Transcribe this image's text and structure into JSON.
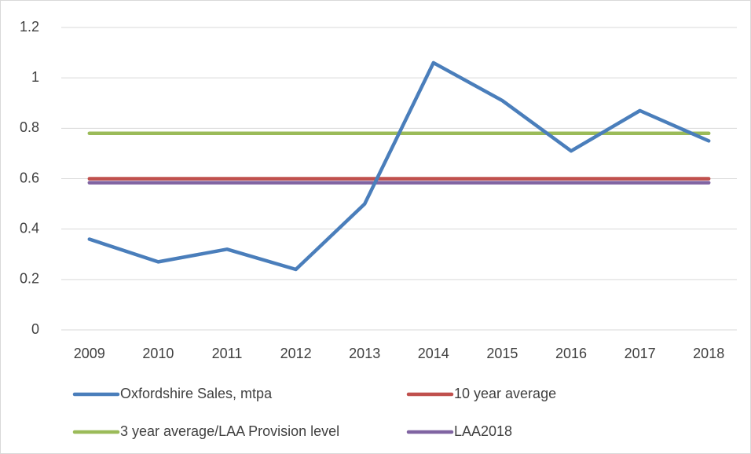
{
  "chart_data": {
    "type": "line",
    "categories": [
      "2009",
      "2010",
      "2011",
      "2012",
      "2013",
      "2014",
      "2015",
      "2016",
      "2017",
      "2018"
    ],
    "series": [
      {
        "name": "Oxfordshire Sales, mtpa",
        "color": "#4a7ebb",
        "values": [
          0.36,
          0.27,
          0.32,
          0.24,
          0.5,
          1.06,
          0.91,
          0.71,
          0.87,
          0.75
        ]
      },
      {
        "name": "10 year average",
        "color": "#c0504d",
        "values": [
          0.6,
          0.6,
          0.6,
          0.6,
          0.6,
          0.6,
          0.6,
          0.6,
          0.6,
          0.6
        ]
      },
      {
        "name": "3 year average/LAA Provision level",
        "color": "#9bbb59",
        "values": [
          0.78,
          0.78,
          0.78,
          0.78,
          0.78,
          0.78,
          0.78,
          0.78,
          0.78,
          0.78
        ]
      },
      {
        "name": "LAA2018",
        "color": "#8064a2",
        "values": [
          0.584,
          0.584,
          0.584,
          0.584,
          0.584,
          0.584,
          0.584,
          0.584,
          0.584,
          0.584
        ]
      }
    ],
    "ylim": [
      0,
      1.2
    ],
    "yticks": [
      0,
      0.2,
      0.4,
      0.6,
      0.8,
      1,
      1.2
    ],
    "grid": true,
    "legend": "bottom"
  }
}
